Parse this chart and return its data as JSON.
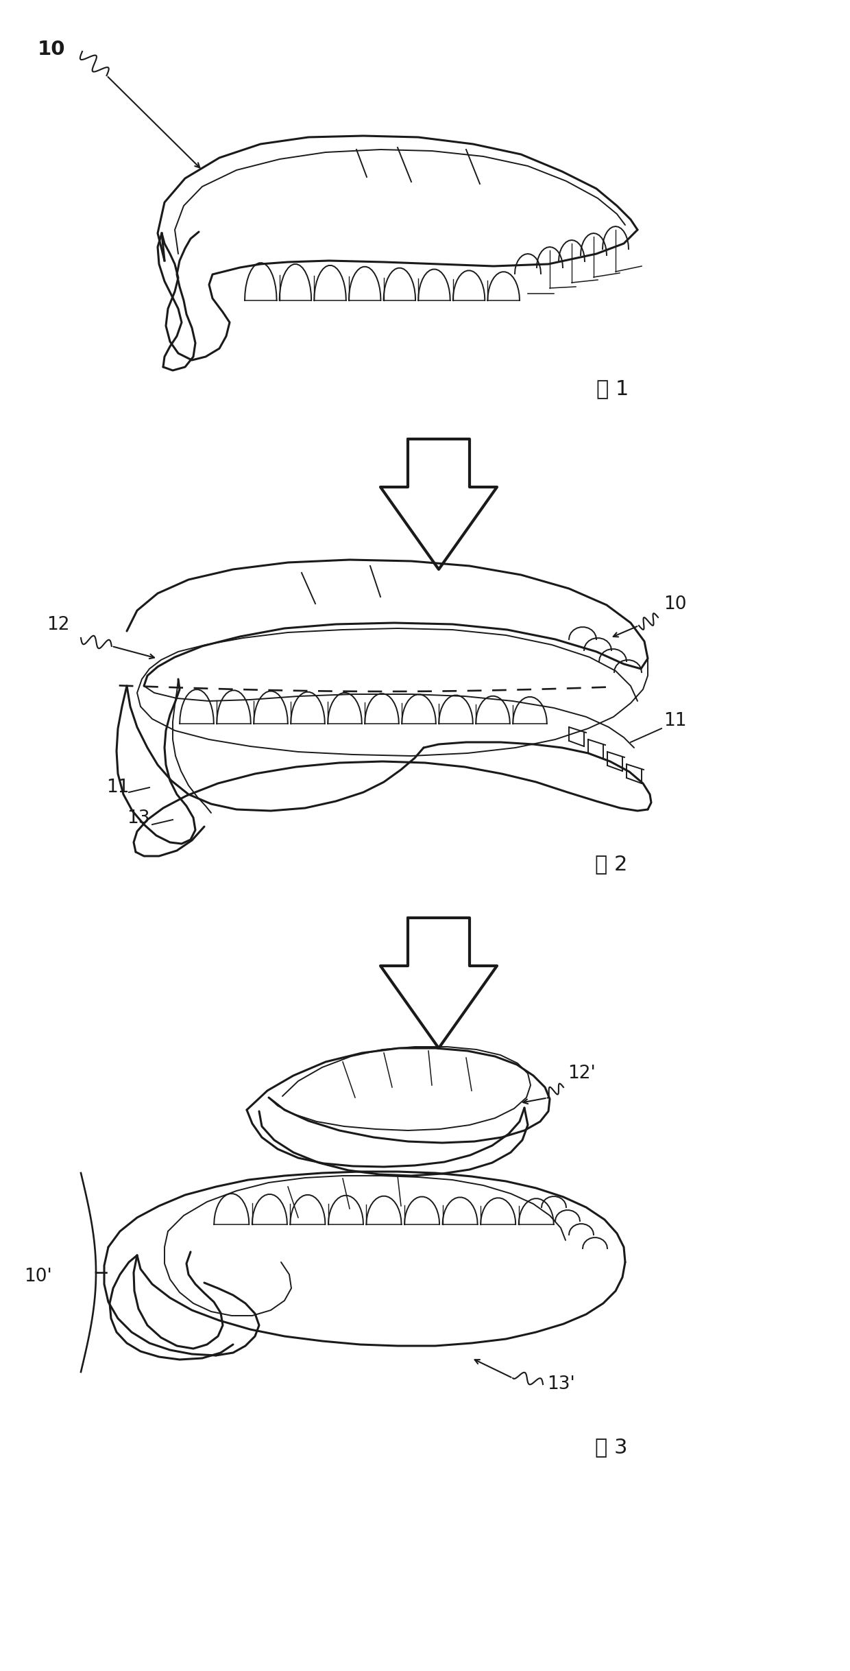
{
  "bg_color": "#ffffff",
  "line_color": "#1a1a1a",
  "fig_width": 12.4,
  "fig_height": 24.36,
  "dpi": 100,
  "fig1_label": "图 1",
  "fig2_label": "图 2",
  "fig3_label": "图 3",
  "lw_main": 2.2,
  "lw_thin": 1.4,
  "lw_thick": 3.0,
  "arrow_lw": 3.0,
  "fontsize_label": 22,
  "fontsize_ref": 19
}
